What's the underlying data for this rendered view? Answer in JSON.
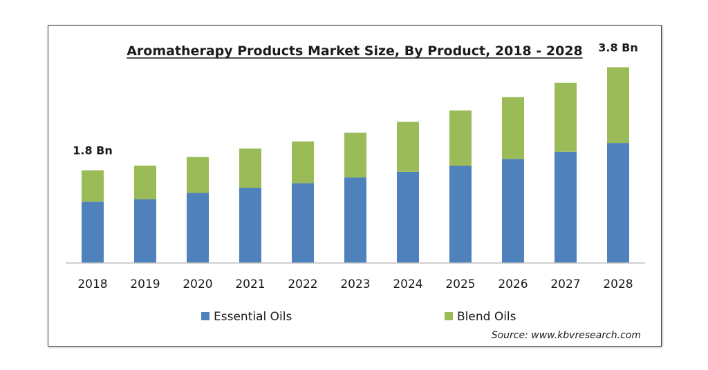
{
  "chart_data": {
    "type": "bar",
    "stacked": true,
    "title": "Aromatherapy Products Market Size, By Product, 2018 - 2028",
    "xlabel": "",
    "ylabel": "",
    "categories": [
      "2018",
      "2019",
      "2020",
      "2021",
      "2022",
      "2023",
      "2024",
      "2025",
      "2026",
      "2027",
      "2028"
    ],
    "series": [
      {
        "name": "Essential Oils",
        "color": "#4f81bd",
        "values": [
          1.19,
          1.24,
          1.36,
          1.46,
          1.55,
          1.66,
          1.77,
          1.89,
          2.02,
          2.16,
          2.33
        ]
      },
      {
        "name": "Blend Oils",
        "color": "#9bbb59",
        "values": [
          0.61,
          0.65,
          0.7,
          0.76,
          0.81,
          0.87,
          0.97,
          1.07,
          1.2,
          1.34,
          1.47
        ]
      }
    ],
    "ylim": [
      0,
      4.1
    ],
    "grid": false,
    "legend": "bottom",
    "annotations": [
      {
        "category": "2018",
        "text": "1.8 Bn"
      },
      {
        "category": "2028",
        "text": "3.8 Bn"
      }
    ],
    "source": "Source:  www.kbvresearch.com"
  }
}
